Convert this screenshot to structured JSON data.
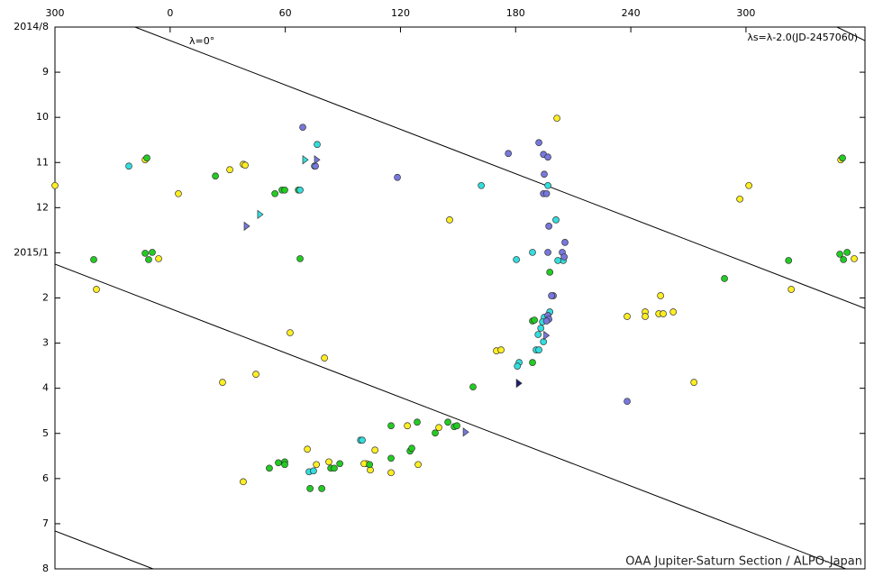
{
  "chart_data": {
    "type": "scatter",
    "annotations": [
      "λ=0°",
      "λs=λ-2.0(JD-2457060)",
      "OAA Jupiter-Saturn Section / ALPO-Japan"
    ],
    "xlim": [
      -60,
      362
    ],
    "xticks": [
      {
        "value": -60,
        "label": "300"
      },
      0,
      60,
      120,
      180,
      240,
      300
    ],
    "ylim": [
      0,
      12
    ],
    "invert_y": true,
    "yticks": [
      {
        "value": 0,
        "label": "2014/8"
      },
      {
        "value": 1,
        "label": "9"
      },
      {
        "value": 2,
        "label": "10"
      },
      {
        "value": 3,
        "label": "11"
      },
      {
        "value": 4,
        "label": "12"
      },
      {
        "value": 5,
        "label": "2015/1"
      },
      {
        "value": 6,
        "label": "2"
      },
      {
        "value": 7,
        "label": "3"
      },
      {
        "value": 8,
        "label": "4"
      },
      {
        "value": 9,
        "label": "5"
      },
      {
        "value": 10,
        "label": "6"
      },
      {
        "value": 11,
        "label": "7"
      },
      {
        "value": 12,
        "label": "8"
      }
    ],
    "series": [
      {
        "color": "#ffee22",
        "marker": "circle",
        "x": [
          -60,
          -13.0,
          4.3,
          31.1,
          38.1,
          39.1,
          201.5,
          145.6,
          301.5,
          296.8,
          349.4,
          356.4,
          -6.0,
          -38.4,
          62.5,
          80.4,
          27.3,
          44.7,
          170,
          172.4,
          238.1,
          247.5,
          247.5,
          255.5,
          254.6,
          256.9,
          262.1,
          272.9,
          323.6,
          71.5,
          76.2,
          82.7,
          106.7,
          102.4,
          104.3,
          115.1,
          129.2,
          123.6,
          140,
          38.1,
          101
        ],
        "values": [
          3.51,
          2.94,
          3.69,
          3.16,
          3.04,
          3.06,
          2.02,
          4.27,
          3.51,
          3.81,
          2.94,
          5.13,
          5.13,
          5.81,
          6.77,
          7.33,
          7.87,
          7.69,
          7.17,
          7.15,
          6.41,
          6.31,
          6.41,
          5.95,
          6.35,
          6.35,
          6.31,
          7.87,
          5.81,
          9.35,
          9.69,
          9.63,
          9.37,
          9.67,
          9.81,
          9.87,
          9.69,
          8.83,
          8.87,
          10.07,
          9.67
        ]
      },
      {
        "color": "#22cc22",
        "marker": "circle",
        "x": [
          -12.1,
          23.6,
          -13.0,
          -11.2,
          -9.3,
          -39.8,
          67.7,
          54.6,
          58.3,
          59.7,
          66.8,
          197.8,
          288.8,
          322.2,
          348.9,
          350.8,
          352.7,
          350.3,
          188.8,
          189.8,
          188.8,
          157.8,
          115.1,
          128.7,
          144.7,
          148,
          149.4,
          138.1,
          125,
          125.9,
          115.1,
          51.7,
          56.4,
          59.7,
          59.7,
          83.7,
          85.5,
          88.4,
          72.9,
          79,
          103.9
        ],
        "values": [
          2.9,
          3.3,
          5.01,
          5.15,
          4.99,
          5.15,
          5.13,
          3.69,
          3.61,
          3.61,
          3.61,
          5.43,
          5.57,
          5.17,
          5.03,
          5.15,
          4.99,
          2.9,
          6.51,
          6.49,
          7.43,
          7.97,
          8.83,
          8.75,
          8.75,
          8.85,
          8.83,
          8.99,
          9.39,
          9.33,
          9.55,
          9.77,
          9.65,
          9.63,
          9.69,
          9.77,
          9.77,
          9.67,
          10.22,
          10.22,
          9.69
        ]
      },
      {
        "color": "#33dddd",
        "marker": "circle",
        "x": [
          -21.5,
          67.7,
          76.6,
          75.2,
          162.1,
          180.4,
          188.8,
          196.8,
          201,
          204.8,
          193.1,
          191.7,
          194.5,
          190.7,
          192.1,
          181.8,
          180.9,
          197.8,
          194.9,
          194,
          99.2,
          100.1,
          72.4,
          74.7,
          202
        ],
        "values": [
          3.08,
          3.61,
          2.6,
          3.08,
          3.51,
          5.15,
          4.99,
          3.51,
          4.27,
          5.17,
          6.67,
          6.81,
          6.97,
          7.15,
          7.15,
          7.43,
          7.51,
          6.31,
          6.43,
          6.53,
          9.15,
          9.15,
          9.85,
          9.83,
          5.17
        ]
      },
      {
        "color": "#7777dd",
        "marker": "circle",
        "x": [
          69.1,
          75.7,
          118.4,
          176.2,
          192.1,
          194.5,
          196.8,
          194.9,
          194.5,
          196.1,
          197.3,
          205.7,
          204.3,
          205.3,
          196.8,
          199.6,
          198.7,
          196.8,
          197.3,
          196.1,
          238.1
        ],
        "values": [
          2.22,
          3.08,
          3.33,
          2.8,
          2.56,
          2.82,
          2.88,
          3.26,
          3.69,
          3.69,
          4.41,
          4.77,
          4.99,
          5.09,
          4.99,
          5.95,
          5.95,
          6.39,
          6.47,
          6.51,
          8.29
        ]
      },
      {
        "color": "#33dddd",
        "marker": "triangle",
        "x": [
          70.5,
          47
        ],
        "values": [
          2.94,
          4.15
        ]
      },
      {
        "color": "#7777dd",
        "marker": "triangle",
        "x": [
          76.6,
          40,
          154.1,
          196.1
        ],
        "values": [
          2.94,
          4.41,
          8.97,
          6.83
        ]
      },
      {
        "color": "#1a2070",
        "marker": "triangle",
        "x": [
          181.8
        ],
        "values": [
          7.89
        ]
      }
    ],
    "lines": [
      {
        "color": "#000000",
        "x": [
          -18.3,
          362
        ],
        "values": [
          0,
          6.23
        ]
      },
      {
        "color": "#000000",
        "x": [
          -60,
          352
        ],
        "values": [
          5.25,
          12
        ]
      },
      {
        "color": "#000000",
        "x": [
          -60,
          -8.9
        ],
        "values": [
          11.16,
          12
        ]
      },
      {
        "color": "#000000",
        "x": [
          347.4,
          362
        ],
        "values": [
          0,
          0.3
        ]
      }
    ]
  }
}
